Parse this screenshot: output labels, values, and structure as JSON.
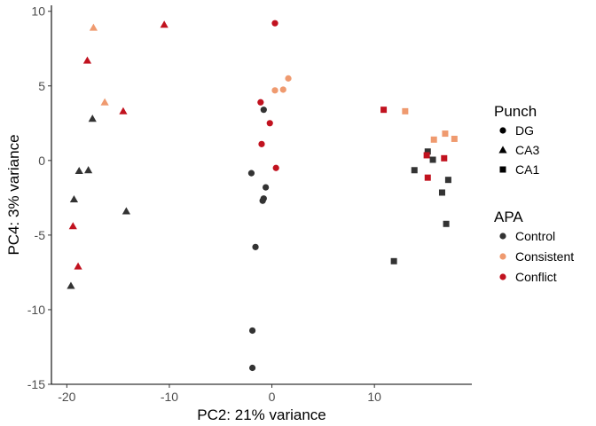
{
  "chart_data": {
    "type": "scatter",
    "title": "",
    "xlabel": "PC2: 21% variance",
    "ylabel": "PC4: 3% variance",
    "xlim": [
      -21.5,
      19.5
    ],
    "ylim": [
      -15,
      10.4
    ],
    "xticks": [
      -20,
      -10,
      0,
      10
    ],
    "yticks": [
      -15,
      -10,
      -5,
      0,
      5,
      10
    ],
    "tick_labels_x": [
      "-20",
      "-10",
      "0",
      "10"
    ],
    "tick_labels_y": [
      "-15",
      "-10",
      "-5",
      "0",
      "5",
      "10"
    ],
    "grid": false,
    "legend_position": "right",
    "legends": [
      {
        "title": "Punch",
        "encoding": "shape",
        "entries": [
          {
            "label": "DG",
            "shape": "circle"
          },
          {
            "label": "CA3",
            "shape": "triangle"
          },
          {
            "label": "CA1",
            "shape": "square"
          }
        ]
      },
      {
        "title": "APA",
        "encoding": "color",
        "entries": [
          {
            "label": "Control",
            "color": "#333333"
          },
          {
            "label": "Consistent",
            "color": "#ef9a6f"
          },
          {
            "label": "Conflict",
            "color": "#c1121f"
          }
        ]
      }
    ],
    "points": [
      {
        "x": 0.3,
        "y": 9.2,
        "punch": "DG",
        "apa": "Conflict"
      },
      {
        "x": 1.6,
        "y": 5.5,
        "punch": "DG",
        "apa": "Consistent"
      },
      {
        "x": 0.3,
        "y": 4.7,
        "punch": "DG",
        "apa": "Consistent"
      },
      {
        "x": 1.1,
        "y": 4.75,
        "punch": "DG",
        "apa": "Consistent"
      },
      {
        "x": -1.1,
        "y": 3.9,
        "punch": "DG",
        "apa": "Conflict"
      },
      {
        "x": -0.8,
        "y": 3.4,
        "punch": "DG",
        "apa": "Control"
      },
      {
        "x": -0.2,
        "y": 2.5,
        "punch": "DG",
        "apa": "Conflict"
      },
      {
        "x": -1.0,
        "y": 1.1,
        "punch": "DG",
        "apa": "Conflict"
      },
      {
        "x": 0.4,
        "y": -0.5,
        "punch": "DG",
        "apa": "Conflict"
      },
      {
        "x": -2.0,
        "y": -0.85,
        "punch": "DG",
        "apa": "Control"
      },
      {
        "x": -0.6,
        "y": -1.8,
        "punch": "DG",
        "apa": "Control"
      },
      {
        "x": -0.8,
        "y": -2.55,
        "punch": "DG",
        "apa": "Control"
      },
      {
        "x": -0.9,
        "y": -2.7,
        "punch": "DG",
        "apa": "Control"
      },
      {
        "x": -1.6,
        "y": -5.8,
        "punch": "DG",
        "apa": "Control"
      },
      {
        "x": -1.9,
        "y": -11.4,
        "punch": "DG",
        "apa": "Control"
      },
      {
        "x": -1.9,
        "y": -13.9,
        "punch": "DG",
        "apa": "Control"
      },
      {
        "x": -17.4,
        "y": 8.9,
        "punch": "CA3",
        "apa": "Consistent"
      },
      {
        "x": -10.5,
        "y": 9.1,
        "punch": "CA3",
        "apa": "Conflict"
      },
      {
        "x": -18.0,
        "y": 6.7,
        "punch": "CA3",
        "apa": "Conflict"
      },
      {
        "x": -16.3,
        "y": 3.9,
        "punch": "CA3",
        "apa": "Consistent"
      },
      {
        "x": -14.5,
        "y": 3.3,
        "punch": "CA3",
        "apa": "Conflict"
      },
      {
        "x": -17.5,
        "y": 2.8,
        "punch": "CA3",
        "apa": "Control"
      },
      {
        "x": -18.8,
        "y": -0.7,
        "punch": "CA3",
        "apa": "Control"
      },
      {
        "x": -17.9,
        "y": -0.65,
        "punch": "CA3",
        "apa": "Control"
      },
      {
        "x": -19.3,
        "y": -2.6,
        "punch": "CA3",
        "apa": "Control"
      },
      {
        "x": -14.2,
        "y": -3.4,
        "punch": "CA3",
        "apa": "Control"
      },
      {
        "x": -19.4,
        "y": -4.4,
        "punch": "CA3",
        "apa": "Conflict"
      },
      {
        "x": -18.9,
        "y": -7.1,
        "punch": "CA3",
        "apa": "Conflict"
      },
      {
        "x": -19.6,
        "y": -8.4,
        "punch": "CA3",
        "apa": "Control"
      },
      {
        "x": 10.9,
        "y": 3.4,
        "punch": "CA1",
        "apa": "Conflict"
      },
      {
        "x": 13.0,
        "y": 3.3,
        "punch": "CA1",
        "apa": "Consistent"
      },
      {
        "x": 16.9,
        "y": 1.8,
        "punch": "CA1",
        "apa": "Consistent"
      },
      {
        "x": 17.8,
        "y": 1.45,
        "punch": "CA1",
        "apa": "Consistent"
      },
      {
        "x": 15.8,
        "y": 1.4,
        "punch": "CA1",
        "apa": "Consistent"
      },
      {
        "x": 15.2,
        "y": 0.6,
        "punch": "CA1",
        "apa": "Control"
      },
      {
        "x": 15.1,
        "y": 0.35,
        "punch": "CA1",
        "apa": "Conflict"
      },
      {
        "x": 15.7,
        "y": 0.05,
        "punch": "CA1",
        "apa": "Control"
      },
      {
        "x": 16.8,
        "y": 0.15,
        "punch": "CA1",
        "apa": "Conflict"
      },
      {
        "x": 13.9,
        "y": -0.65,
        "punch": "CA1",
        "apa": "Control"
      },
      {
        "x": 15.2,
        "y": -1.15,
        "punch": "CA1",
        "apa": "Conflict"
      },
      {
        "x": 17.2,
        "y": -1.3,
        "punch": "CA1",
        "apa": "Control"
      },
      {
        "x": 16.6,
        "y": -2.15,
        "punch": "CA1",
        "apa": "Control"
      },
      {
        "x": 17.0,
        "y": -4.25,
        "punch": "CA1",
        "apa": "Control"
      },
      {
        "x": 11.9,
        "y": -6.75,
        "punch": "CA1",
        "apa": "Control"
      }
    ]
  }
}
